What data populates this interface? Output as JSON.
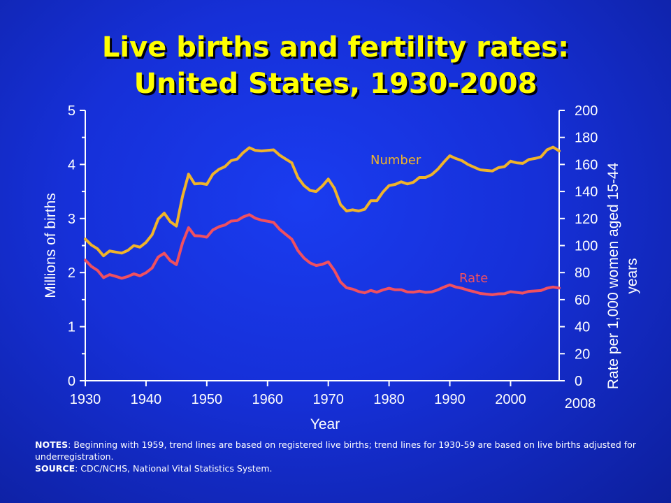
{
  "title_line1": "Live births and fertility rates:",
  "title_line2": "United States, 1930-2008",
  "notes": {
    "notes_label": "NOTES",
    "notes_text": ": Beginning with 1959, trend lines are based on registered live births; trend lines for 1930-59 are based on live births adjusted for underregistration.",
    "source_label": "SOURCE",
    "source_text": ": CDC/NCHS, National Vital Statistics System."
  },
  "colors": {
    "background": "#1630d8",
    "number_line": "#f0b42a",
    "rate_line": "#f05060",
    "axis_text": "#ffffff",
    "title": "#ffff00"
  },
  "chart_data": {
    "type": "line",
    "title": "Live births and fertility rates: United States, 1930-2008",
    "xlabel": "Year",
    "ylabel_left": "Millions of births",
    "ylabel_right": "Rate per 1,000 women aged 15-44 years",
    "xlim": [
      1930,
      2008
    ],
    "ylim_left": [
      0,
      5
    ],
    "ylim_right": [
      0,
      200
    ],
    "x_ticks": [
      "1930",
      "1940",
      "1950",
      "1960",
      "1970",
      "1980",
      "1990",
      "2000"
    ],
    "x_end_label": "2008",
    "y_left_ticks": [
      "0",
      "1",
      "2",
      "3",
      "4",
      "5"
    ],
    "y_right_ticks": [
      "0",
      "20",
      "40",
      "60",
      "80",
      "100",
      "120",
      "140",
      "160",
      "180",
      "200"
    ],
    "grid": false,
    "x": [
      1930,
      1931,
      1932,
      1933,
      1934,
      1935,
      1936,
      1937,
      1938,
      1939,
      1940,
      1941,
      1942,
      1943,
      1944,
      1945,
      1946,
      1947,
      1948,
      1949,
      1950,
      1951,
      1952,
      1953,
      1954,
      1955,
      1956,
      1957,
      1958,
      1959,
      1960,
      1961,
      1962,
      1963,
      1964,
      1965,
      1966,
      1967,
      1968,
      1969,
      1970,
      1971,
      1972,
      1973,
      1974,
      1975,
      1976,
      1977,
      1978,
      1979,
      1980,
      1981,
      1982,
      1983,
      1984,
      1985,
      1986,
      1987,
      1988,
      1989,
      1990,
      1991,
      1992,
      1993,
      1994,
      1995,
      1996,
      1997,
      1998,
      1999,
      2000,
      2001,
      2002,
      2003,
      2004,
      2005,
      2006,
      2007,
      2008
    ],
    "series": [
      {
        "name": "Number",
        "axis": "left",
        "values": [
          2.62,
          2.51,
          2.44,
          2.31,
          2.4,
          2.38,
          2.36,
          2.41,
          2.5,
          2.47,
          2.56,
          2.7,
          2.99,
          3.1,
          2.94,
          2.86,
          3.41,
          3.82,
          3.64,
          3.65,
          3.63,
          3.82,
          3.91,
          3.96,
          4.07,
          4.1,
          4.22,
          4.31,
          4.26,
          4.25,
          4.26,
          4.27,
          4.17,
          4.1,
          4.03,
          3.76,
          3.61,
          3.52,
          3.5,
          3.6,
          3.73,
          3.56,
          3.26,
          3.14,
          3.16,
          3.14,
          3.17,
          3.33,
          3.33,
          3.49,
          3.61,
          3.63,
          3.68,
          3.64,
          3.67,
          3.76,
          3.76,
          3.81,
          3.91,
          4.04,
          4.16,
          4.11,
          4.07,
          4.0,
          3.95,
          3.9,
          3.89,
          3.88,
          3.94,
          3.96,
          4.06,
          4.03,
          4.02,
          4.09,
          4.11,
          4.14,
          4.27,
          4.32,
          4.25
        ]
      },
      {
        "name": "Rate",
        "axis": "right",
        "values": [
          89.2,
          84.6,
          81.7,
          76.3,
          78.5,
          77.2,
          75.8,
          77.1,
          79.1,
          77.6,
          79.9,
          83.4,
          91.5,
          94.3,
          88.8,
          85.9,
          101.9,
          113.3,
          107.3,
          107.1,
          106.2,
          111.5,
          113.9,
          115.2,
          118.1,
          118.5,
          121.2,
          122.9,
          120.2,
          118.8,
          118.0,
          117.1,
          112.0,
          108.3,
          104.7,
          96.3,
          90.8,
          87.2,
          85.2,
          86.1,
          87.9,
          81.6,
          73.1,
          68.8,
          67.8,
          66.0,
          65.0,
          66.8,
          65.5,
          67.2,
          68.4,
          67.3,
          67.3,
          65.7,
          65.5,
          66.3,
          65.4,
          65.7,
          67.2,
          69.2,
          70.9,
          69.3,
          68.4,
          67.0,
          65.9,
          64.6,
          64.1,
          63.6,
          64.3,
          64.4,
          65.9,
          65.3,
          64.8,
          66.1,
          66.4,
          66.7,
          68.5,
          69.3,
          68.6
        ]
      }
    ],
    "annotations": [
      {
        "text": "Number",
        "series": "Number"
      },
      {
        "text": "Rate",
        "series": "Rate"
      }
    ]
  }
}
